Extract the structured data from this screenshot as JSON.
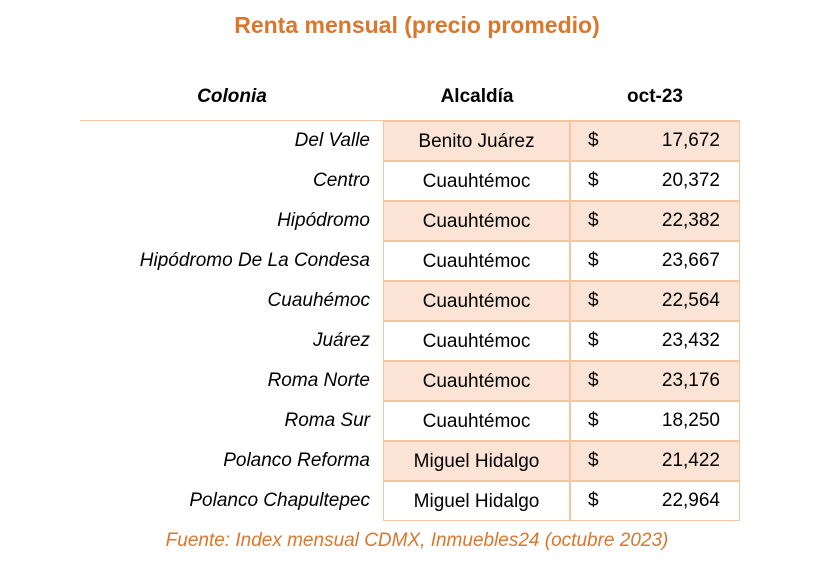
{
  "title": "Renta mensual (precio promedio)",
  "table": {
    "headers": [
      "Colonia",
      "Alcaldía",
      "oct-23"
    ],
    "rows": [
      [
        "Del Valle",
        "Benito Juárez",
        "$",
        "17,672"
      ],
      [
        "Centro",
        "Cuauhtémoc",
        "$",
        "20,372"
      ],
      [
        "Hipódromo",
        "Cuauhtémoc",
        "$",
        "22,382"
      ],
      [
        "Hipódromo De La Condesa",
        "Cuauhtémoc",
        "$",
        "23,667"
      ],
      [
        "Cuauhémoc",
        "Cuauhtémoc",
        "$",
        "22,564"
      ],
      [
        "Juárez",
        "Cuauhtémoc",
        "$",
        "23,432"
      ],
      [
        "Roma Norte",
        "Cuauhtémoc",
        "$",
        "23,176"
      ],
      [
        "Roma Sur",
        "Cuauhtémoc",
        "$",
        "18,250"
      ],
      [
        "Polanco Reforma",
        "Miguel Hidalgo",
        "$",
        "21,422"
      ],
      [
        "Polanco Chapultepec",
        "Miguel Hidalgo",
        "$",
        "22,964"
      ]
    ]
  },
  "source": "Fuente: Index mensual CDMX, Inmuebles24 (octubre 2023)"
}
